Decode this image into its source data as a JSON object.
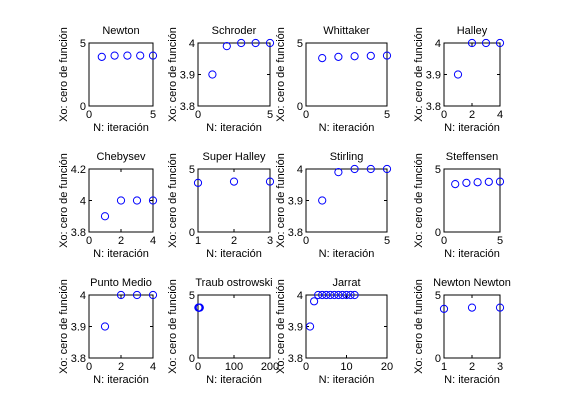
{
  "figure": {
    "background": "#ffffff",
    "marker_color": "#0000ff",
    "marker": "circle-open"
  },
  "chart_data": [
    {
      "type": "scatter",
      "title": "Newton",
      "xlabel": "N: iteración",
      "ylabel": "Xo: cero de función",
      "xlim": [
        0,
        5
      ],
      "ylim": [
        0,
        5
      ],
      "xticks": [
        0,
        5
      ],
      "yticks": [
        0,
        5
      ],
      "x": [
        1,
        2,
        3,
        4,
        5
      ],
      "y": [
        3.9,
        4.0,
        4.0,
        4.0,
        4.0
      ]
    },
    {
      "type": "scatter",
      "title": "Schroder",
      "xlabel": "N: iteración",
      "ylabel": "Xo: cero de función",
      "xlim": [
        0,
        5
      ],
      "ylim": [
        3.8,
        4
      ],
      "xticks": [
        0,
        5
      ],
      "yticks": [
        3.8,
        3.9,
        4
      ],
      "x": [
        1,
        2,
        3,
        4,
        5
      ],
      "y": [
        3.9,
        3.99,
        4.0,
        4.0,
        4.0
      ]
    },
    {
      "type": "scatter",
      "title": "Whittaker",
      "xlabel": "N: iteración",
      "ylabel": "Xo: cero de función",
      "xlim": [
        0,
        5
      ],
      "ylim": [
        0,
        5
      ],
      "xticks": [
        0,
        5
      ],
      "yticks": [
        0,
        5
      ],
      "x": [
        1,
        2,
        3,
        4,
        5
      ],
      "y": [
        3.8,
        3.9,
        3.95,
        3.98,
        4.0
      ]
    },
    {
      "type": "scatter",
      "title": "Halley",
      "xlabel": "N: iteración",
      "ylabel": "Xo: cero de función",
      "xlim": [
        0,
        4
      ],
      "ylim": [
        3.8,
        4
      ],
      "xticks": [
        0,
        2,
        4
      ],
      "yticks": [
        3.8,
        3.9,
        4
      ],
      "x": [
        1,
        2,
        3,
        4
      ],
      "y": [
        3.9,
        4.0,
        4.0,
        4.0
      ]
    },
    {
      "type": "scatter",
      "title": "Chebysev",
      "xlabel": "N: iteración",
      "ylabel": "Xo: cero de función",
      "xlim": [
        0,
        4
      ],
      "ylim": [
        3.8,
        4.2
      ],
      "xticks": [
        0,
        2,
        4
      ],
      "yticks": [
        3.8,
        4,
        4.2
      ],
      "x": [
        1,
        2,
        3,
        4
      ],
      "y": [
        3.9,
        4.0,
        4.0,
        4.0
      ]
    },
    {
      "type": "scatter",
      "title": "Super Halley",
      "xlabel": "N: iteración",
      "ylabel": "Xo: cero de función",
      "xlim": [
        1,
        3
      ],
      "ylim": [
        0,
        5
      ],
      "xticks": [
        1,
        2,
        3
      ],
      "yticks": [
        0,
        5
      ],
      "x": [
        1,
        2,
        3
      ],
      "y": [
        3.9,
        4.0,
        4.0
      ]
    },
    {
      "type": "scatter",
      "title": "Stirling",
      "xlabel": "N: iteración",
      "ylabel": "Xo: cero de función",
      "xlim": [
        0,
        5
      ],
      "ylim": [
        3.8,
        4
      ],
      "xticks": [
        0,
        5
      ],
      "yticks": [
        3.8,
        3.9,
        4
      ],
      "x": [
        1,
        2,
        3,
        4,
        5
      ],
      "y": [
        3.9,
        3.99,
        4.0,
        4.0,
        4.0
      ]
    },
    {
      "type": "scatter",
      "title": "Steffensen",
      "xlabel": "N: iteración",
      "ylabel": "Xo: cero de función",
      "xlim": [
        0,
        5
      ],
      "ylim": [
        0,
        5
      ],
      "xticks": [
        0,
        5
      ],
      "yticks": [
        0,
        5
      ],
      "x": [
        1,
        2,
        3,
        4,
        5
      ],
      "y": [
        3.8,
        3.9,
        3.95,
        3.98,
        4.0
      ]
    },
    {
      "type": "scatter",
      "title": "Punto Medio",
      "xlabel": "N: iteración",
      "ylabel": "Xo: cero de función",
      "xlim": [
        0,
        4
      ],
      "ylim": [
        3.8,
        4
      ],
      "xticks": [
        0,
        2,
        4
      ],
      "yticks": [
        3.8,
        3.9,
        4
      ],
      "x": [
        1,
        2,
        3,
        4
      ],
      "y": [
        3.9,
        4.0,
        4.0,
        4.0
      ]
    },
    {
      "type": "scatter",
      "title": "Traub ostrowski",
      "xlabel": "N: iteración",
      "ylabel": "Xo: cero de función",
      "xlim": [
        0,
        200
      ],
      "ylim": [
        0,
        5
      ],
      "xticks": [
        0,
        100,
        200
      ],
      "yticks": [
        0,
        5
      ],
      "x": [
        1,
        2,
        3,
        4,
        5
      ],
      "y": [
        4.0,
        4.0,
        4.0,
        4.0,
        4.0
      ]
    },
    {
      "type": "scatter",
      "title": "Jarrat",
      "xlabel": "N: iteración",
      "ylabel": "Xo: cero de función",
      "xlim": [
        0,
        20
      ],
      "ylim": [
        3.8,
        4
      ],
      "xticks": [
        0,
        10,
        20
      ],
      "yticks": [
        3.8,
        3.9,
        4
      ],
      "x": [
        1,
        2,
        3,
        4,
        5,
        6,
        7,
        8,
        9,
        10,
        11,
        12
      ],
      "y": [
        3.9,
        3.98,
        4.0,
        4.0,
        4.0,
        4.0,
        4.0,
        4.0,
        4.0,
        4.0,
        4.0,
        4.0
      ]
    },
    {
      "type": "scatter",
      "title": "Newton Newton",
      "xlabel": "N: iteración",
      "ylabel": "Xo: cero de función",
      "xlim": [
        1,
        3
      ],
      "ylim": [
        0,
        5
      ],
      "xticks": [
        1,
        2,
        3
      ],
      "yticks": [
        0,
        5
      ],
      "x": [
        1,
        2,
        3
      ],
      "y": [
        3.9,
        4.0,
        4.0
      ]
    }
  ]
}
